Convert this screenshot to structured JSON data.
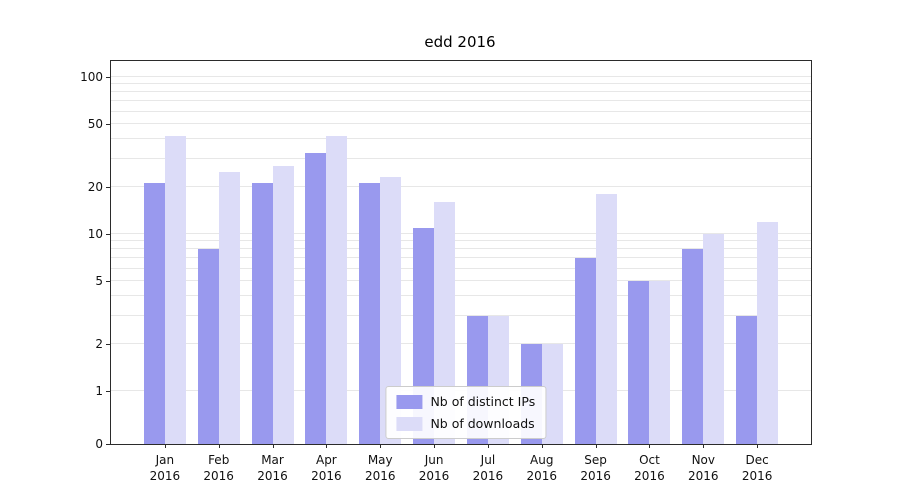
{
  "title": "edd 2016",
  "chart_data": {
    "type": "bar",
    "title": "edd 2016",
    "scale": "symlog",
    "xlim": [
      -1,
      12
    ],
    "ylim": [
      0,
      140
    ],
    "grid": "on",
    "legend_position": "lower center",
    "year_label": "2016",
    "categories": [
      "Jan",
      "Feb",
      "Mar",
      "Apr",
      "May",
      "Jun",
      "Jul",
      "Aug",
      "Sep",
      "Oct",
      "Nov",
      "Dec"
    ],
    "yticks": [
      0,
      1,
      2,
      5,
      10,
      20,
      50,
      100
    ],
    "gridline_values": [
      1,
      2,
      3,
      4,
      5,
      6,
      7,
      8,
      9,
      10,
      20,
      30,
      40,
      50,
      60,
      70,
      80,
      90,
      100
    ],
    "series": [
      {
        "name": "Nb of distinct IPs",
        "color": "#9999ee",
        "values": [
          21,
          8,
          21,
          33,
          21,
          11,
          3,
          2,
          7,
          5,
          8,
          3
        ]
      },
      {
        "name": "Nb of downloads",
        "color": "#dcdcf8",
        "values": [
          42,
          25,
          27,
          42,
          23,
          16,
          3,
          2,
          18,
          5,
          10,
          12
        ]
      }
    ]
  }
}
